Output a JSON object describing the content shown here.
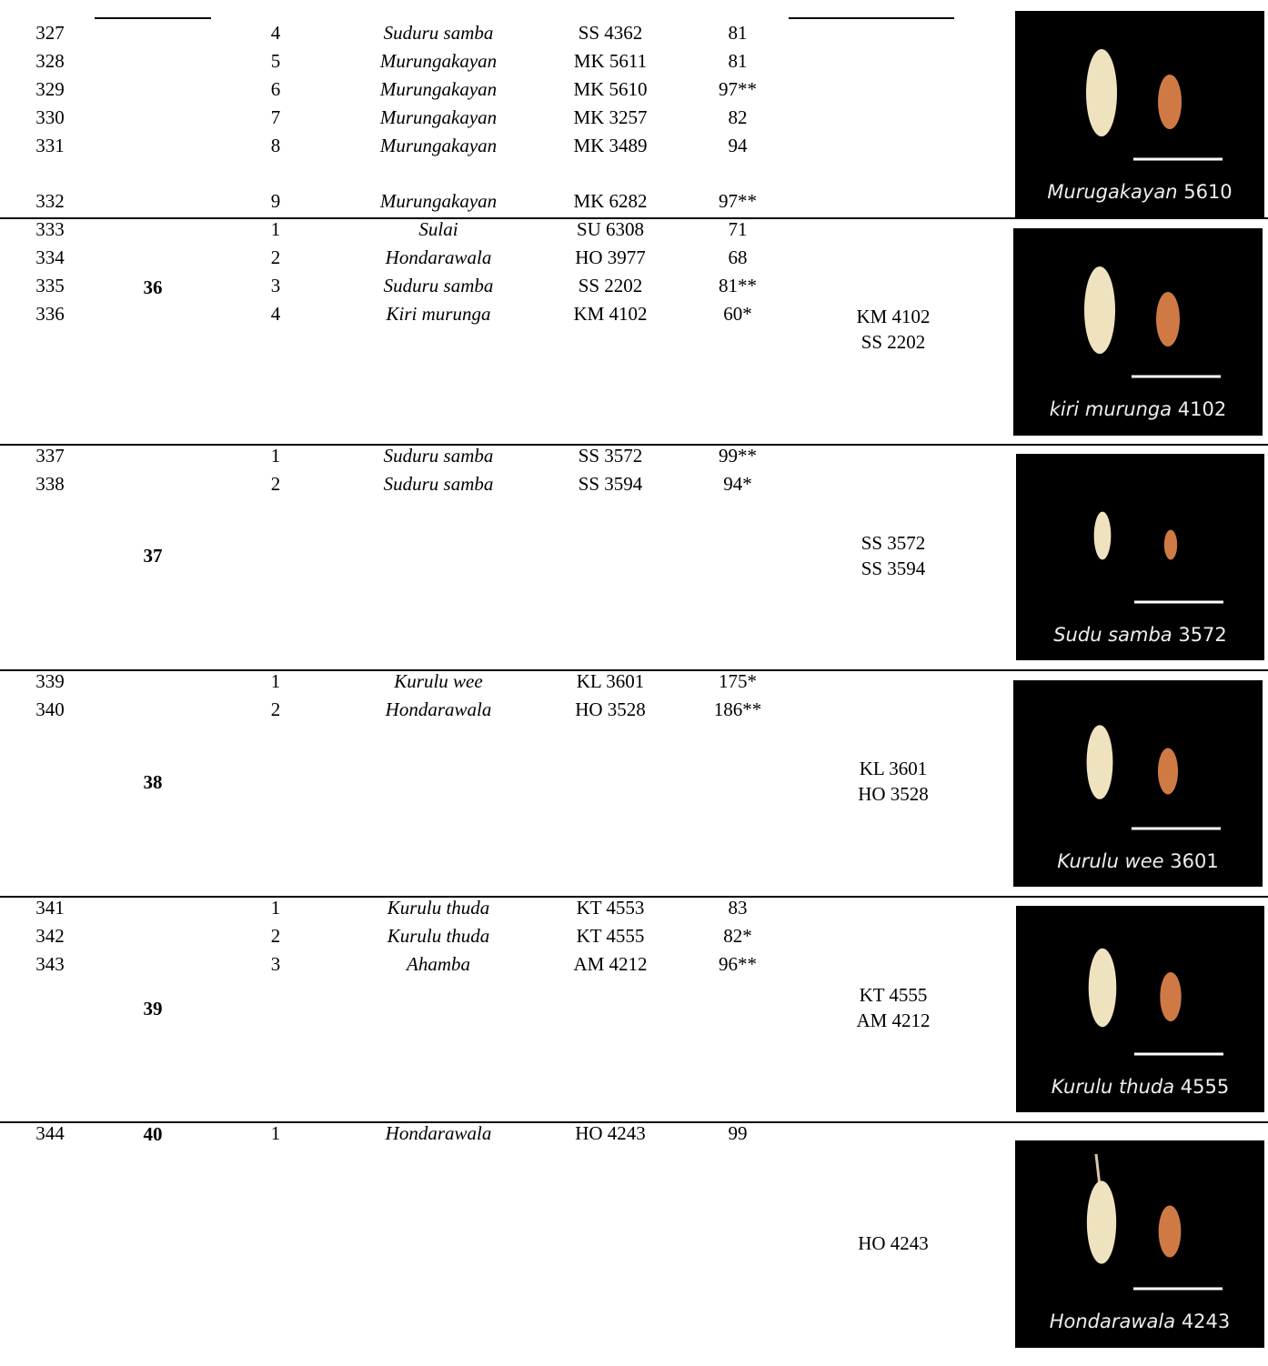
{
  "table": {
    "groups": [
      {
        "rows": [
          [
            327,
            4,
            "Suduru samba",
            "SS 4362",
            "81"
          ],
          [
            328,
            5,
            "Murungakayan",
            "MK 5611",
            "81"
          ],
          [
            329,
            6,
            "Murungakayan",
            "MK 5610",
            "97**"
          ],
          [
            330,
            7,
            "Murungakayan",
            "MK 3257",
            "82"
          ],
          [
            331,
            8,
            "Murungakayan",
            "MK 3489",
            "94"
          ],
          [
            332,
            9,
            "Murungakayan",
            "MK 6282",
            "97**"
          ]
        ],
        "caption": {
          "name": "Murugakayan",
          "number": "5610"
        }
      },
      {
        "cluster": 36,
        "rows": [
          [
            333,
            1,
            "Sulai",
            "SU 6308",
            "71"
          ],
          [
            334,
            2,
            "Hondarawala",
            "HO 3977",
            "68"
          ],
          [
            335,
            3,
            "Suduru samba",
            "SS 2202",
            "81**"
          ],
          [
            336,
            4,
            "Kiri murunga",
            "KM 4102",
            "60*"
          ]
        ],
        "selected": [
          "KM 4102",
          "SS 2202"
        ],
        "caption": {
          "name": "kiri murunga",
          "number": "4102"
        }
      },
      {
        "cluster": 37,
        "rows": [
          [
            337,
            1,
            "Suduru samba",
            "SS 3572",
            "99**"
          ],
          [
            338,
            2,
            "Suduru samba",
            "SS 3594",
            "94*"
          ]
        ],
        "selected": [
          "SS 3572",
          "SS 3594"
        ],
        "caption": {
          "name": "Sudu samba",
          "number": "3572"
        }
      },
      {
        "cluster": 38,
        "rows": [
          [
            339,
            1,
            "Kurulu wee",
            "KL 3601",
            "175*"
          ],
          [
            340,
            2,
            "Hondarawala",
            "HO 3528",
            "186**"
          ]
        ],
        "selected": [
          "KL 3601",
          "HO 3528"
        ],
        "caption": {
          "name": "Kurulu wee",
          "number": "3601"
        }
      },
      {
        "cluster": 39,
        "rows": [
          [
            341,
            1,
            "Kurulu thuda",
            "KT 4553",
            "83"
          ],
          [
            342,
            2,
            "Kurulu thuda",
            "KT 4555",
            "82*"
          ],
          [
            343,
            3,
            "Ahamba",
            "AM 4212",
            "96**"
          ]
        ],
        "selected": [
          "KT 4555",
          "AM 4212"
        ],
        "caption": {
          "name": "Kurulu thuda",
          "number": "4555"
        }
      },
      {
        "cluster": 40,
        "rows": [
          [
            344,
            1,
            "Hondarawala",
            "HO 4243",
            "99"
          ]
        ],
        "selected": [
          "HO 4243"
        ],
        "caption": {
          "name": "Hondarawala",
          "number": "4243"
        }
      }
    ]
  }
}
